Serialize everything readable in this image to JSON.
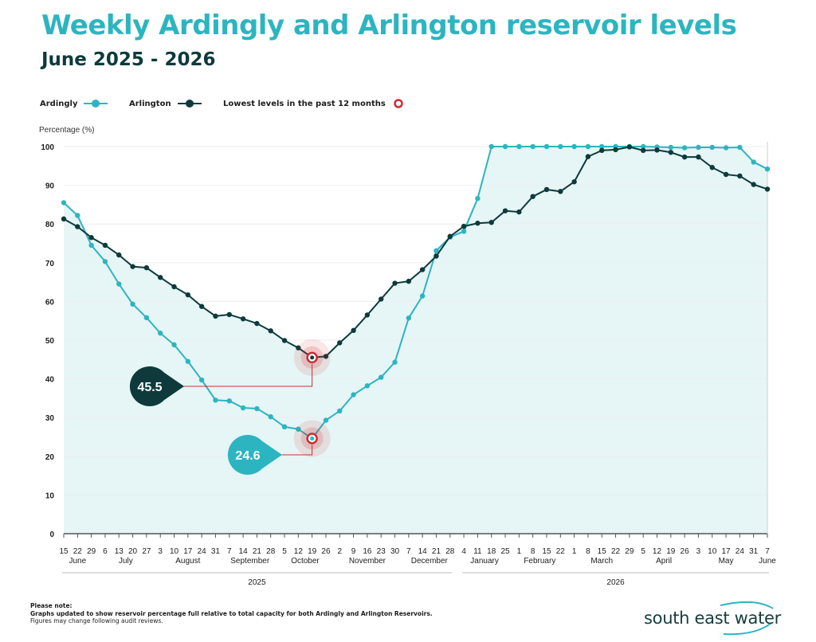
{
  "header": {
    "title": "Weekly Ardingly and Arlington reservoir levels",
    "subtitle": "June 2025 - 2026"
  },
  "legend": {
    "ardingly": "Ardingly",
    "arlington": "Arlington",
    "lowest": "Lowest levels in the past 12 months"
  },
  "colors": {
    "ardingly": "#2cb5c0",
    "arlington": "#0e3a3b",
    "lowest": "#cc2e34",
    "area": "#e6f5f6"
  },
  "chart_data": {
    "type": "line",
    "ylabel": "Percentage (%)",
    "ylim": [
      0,
      100
    ],
    "yticks": [
      0,
      10,
      20,
      30,
      40,
      50,
      60,
      70,
      80,
      90,
      100
    ],
    "grid": true,
    "x": [
      "15",
      "22",
      "29",
      "6",
      "13",
      "20",
      "27",
      "3",
      "10",
      "17",
      "24",
      "31",
      "7",
      "14",
      "21",
      "28",
      "5",
      "12",
      "19",
      "26",
      "2",
      "9",
      "16",
      "23",
      "30",
      "7",
      "14",
      "21",
      "28",
      "4",
      "11",
      "18",
      "25",
      "1",
      "8",
      "15",
      "22",
      "1",
      "8",
      "15",
      "22",
      "29",
      "5",
      "12",
      "19",
      "26",
      "3",
      "10",
      "17",
      "24",
      "31",
      "7"
    ],
    "months": [
      {
        "label": "June",
        "start": 0,
        "end": 2
      },
      {
        "label": "July",
        "start": 3,
        "end": 6
      },
      {
        "label": "August",
        "start": 7,
        "end": 11
      },
      {
        "label": "September",
        "start": 12,
        "end": 15
      },
      {
        "label": "October",
        "start": 16,
        "end": 19
      },
      {
        "label": "November",
        "start": 20,
        "end": 24
      },
      {
        "label": "December",
        "start": 25,
        "end": 28
      },
      {
        "label": "January",
        "start": 29,
        "end": 32
      },
      {
        "label": "February",
        "start": 33,
        "end": 36
      },
      {
        "label": "March",
        "start": 37,
        "end": 41
      },
      {
        "label": "April",
        "start": 42,
        "end": 45
      },
      {
        "label": "May",
        "start": 46,
        "end": 50
      },
      {
        "label": "June",
        "start": 51,
        "end": 51
      }
    ],
    "years": [
      {
        "label": "2025",
        "start": 0,
        "end": 28
      },
      {
        "label": "2026",
        "start": 29,
        "end": 51
      }
    ],
    "series": [
      {
        "name": "Ardingly",
        "values": [
          85.5,
          82.2,
          74.5,
          70.3,
          64.5,
          59.3,
          55.8,
          51.8,
          48.8,
          44.5,
          39.7,
          34.5,
          34.3,
          32.5,
          32.3,
          30.2,
          27.6,
          27.0,
          24.6,
          29.3,
          31.7,
          35.9,
          38.2,
          40.4,
          44.3,
          55.7,
          61.4,
          73.1,
          76.6,
          78.1,
          86.6,
          100,
          100,
          100,
          100,
          100,
          100,
          100,
          100,
          100,
          100,
          100,
          100,
          99.9,
          99.8,
          99.7,
          99.8,
          99.8,
          99.7,
          99.8,
          96.0,
          94.2
        ]
      },
      {
        "name": "Arlington",
        "values": [
          81.3,
          79.3,
          76.5,
          74.5,
          72.0,
          69.0,
          68.7,
          66.2,
          63.8,
          61.7,
          58.7,
          56.2,
          56.6,
          55.5,
          54.3,
          52.4,
          49.9,
          48.0,
          45.5,
          45.8,
          49.3,
          52.5,
          56.5,
          60.6,
          64.7,
          65.2,
          68.2,
          71.7,
          76.8,
          79.4,
          80.2,
          80.4,
          83.4,
          83.1,
          87.1,
          88.9,
          88.4,
          90.9,
          97.4,
          99.0,
          99.2,
          99.9,
          99.0,
          99.1,
          98.5,
          97.3,
          97.3,
          94.6,
          92.8,
          92.4,
          90.2,
          89.0
        ]
      }
    ],
    "annotations": [
      {
        "series": "Arlington",
        "index": 18,
        "value": 45.5,
        "label": "45.5"
      },
      {
        "series": "Ardingly",
        "index": 18,
        "value": 24.6,
        "label": "24.6"
      }
    ]
  },
  "footnote": {
    "heading": "Please note:",
    "line1": "Graphs updated to show reservoir percentage full relative to total capacity for both Ardingly and Arlington Reservoirs.",
    "line2": "Figures may change following audit reviews."
  },
  "logo": {
    "text": "south east water"
  }
}
